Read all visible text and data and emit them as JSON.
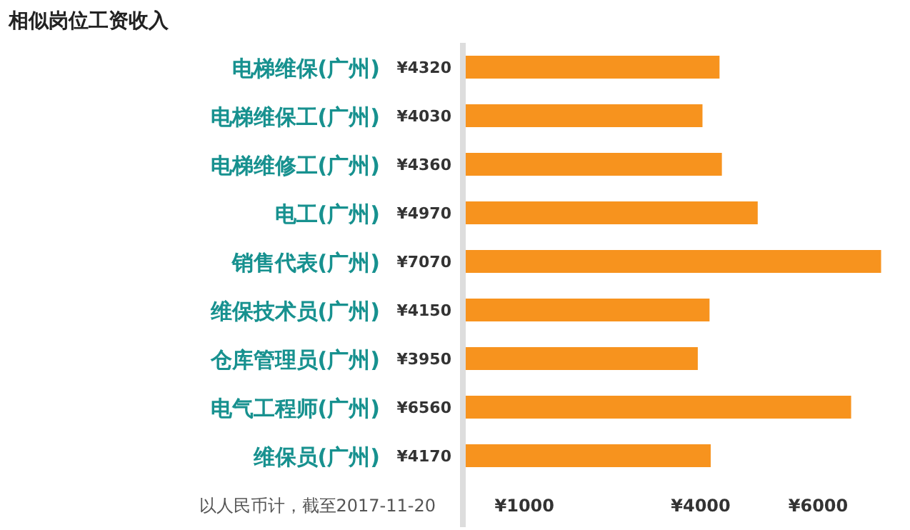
{
  "chart_data": {
    "type": "bar",
    "orientation": "horizontal",
    "title": "相似岗位工资收入",
    "categories": [
      "电梯维保(广州)",
      "电梯维保工(广州)",
      "电梯维修工(广州)",
      "电工(广州)",
      "销售代表(广州)",
      "维保技术员(广州)",
      "仓库管理员(广州)",
      "电气工程师(广州)",
      "维保员(广州)"
    ],
    "values": [
      4320,
      4030,
      4360,
      4970,
      7070,
      4150,
      3950,
      6560,
      4170
    ],
    "value_labels": [
      "¥4320",
      "¥4030",
      "¥4360",
      "¥4970",
      "¥7070",
      "¥4150",
      "¥3950",
      "¥6560",
      "¥4170"
    ],
    "color": "#f7931e",
    "xlim": [
      0,
      7100
    ],
    "xticks": [
      {
        "value": 1000,
        "label": "¥1000"
      },
      {
        "value": 4000,
        "label": "¥4000"
      },
      {
        "value": 6000,
        "label": "¥6000"
      }
    ],
    "annotations": [
      "以人民币计，截至2017-11-20"
    ],
    "grid": false
  }
}
